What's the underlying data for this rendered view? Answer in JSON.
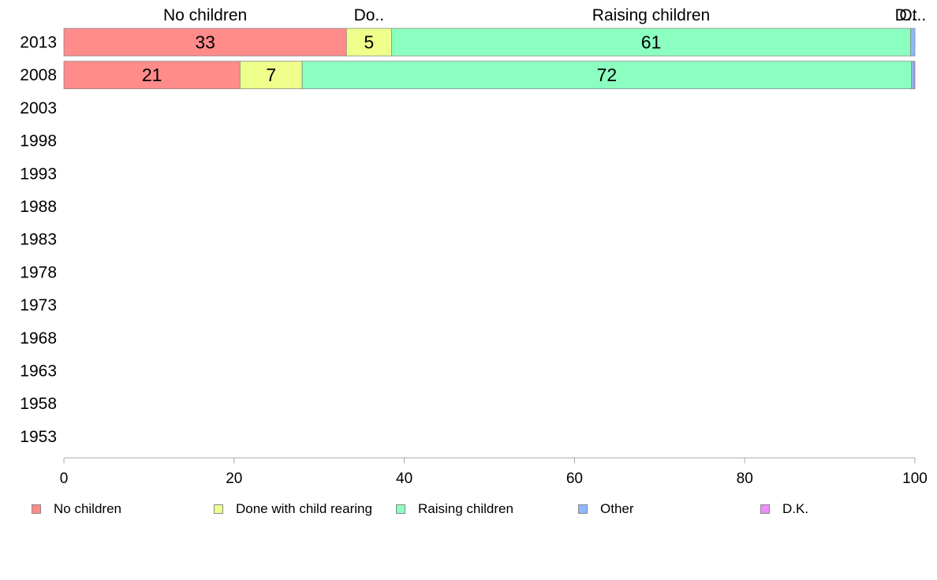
{
  "chart_data": {
    "type": "bar",
    "orientation": "horizontal",
    "stacked": true,
    "categories": [
      "2013",
      "2008",
      "2003",
      "1998",
      "1993",
      "1988",
      "1983",
      "1978",
      "1973",
      "1968",
      "1963",
      "1958",
      "1953"
    ],
    "series": [
      {
        "name": "No children",
        "top_label": "No children",
        "color": "#ff8b8b",
        "values": [
          33.2,
          20.7,
          null,
          null,
          null,
          null,
          null,
          null,
          null,
          null,
          null,
          null,
          null
        ],
        "labels": [
          "33",
          "21",
          "",
          "",
          "",
          "",
          "",
          "",
          "",
          "",
          "",
          "",
          ""
        ]
      },
      {
        "name": "Done with child rearing",
        "top_label": "Do..",
        "color": "#eeff8b",
        "values": [
          5.3,
          7.3,
          null,
          null,
          null,
          null,
          null,
          null,
          null,
          null,
          null,
          null,
          null
        ],
        "labels": [
          "5",
          "7",
          "",
          "",
          "",
          "",
          "",
          "",
          "",
          "",
          "",
          "",
          ""
        ]
      },
      {
        "name": "Raising children",
        "top_label": "Raising children",
        "color": "#8bffc0",
        "values": [
          61.0,
          71.6,
          null,
          null,
          null,
          null,
          null,
          null,
          null,
          null,
          null,
          null,
          null
        ],
        "labels": [
          "61",
          "72",
          "",
          "",
          "",
          "",
          "",
          "",
          "",
          "",
          "",
          "",
          ""
        ]
      },
      {
        "name": "Other",
        "top_label": "Ot..",
        "color": "#8bb8ff",
        "values": [
          0.5,
          0.3,
          null,
          null,
          null,
          null,
          null,
          null,
          null,
          null,
          null,
          null,
          null
        ],
        "labels": [
          "",
          "",
          "",
          "",
          "",
          "",
          "",
          "",
          "",
          "",
          "",
          "",
          ""
        ]
      },
      {
        "name": "D.K.",
        "top_label": "D..",
        "color": "#ee8bff",
        "values": [
          0.0,
          0.1,
          null,
          null,
          null,
          null,
          null,
          null,
          null,
          null,
          null,
          null,
          null
        ],
        "labels": [
          "",
          "",
          "",
          "",
          "",
          "",
          "",
          "",
          "",
          "",
          "",
          "",
          ""
        ]
      }
    ],
    "xlim": [
      0,
      100
    ],
    "xticks": [
      0,
      20,
      40,
      60,
      80,
      100
    ],
    "grid": false,
    "legend_position": "bottom"
  }
}
